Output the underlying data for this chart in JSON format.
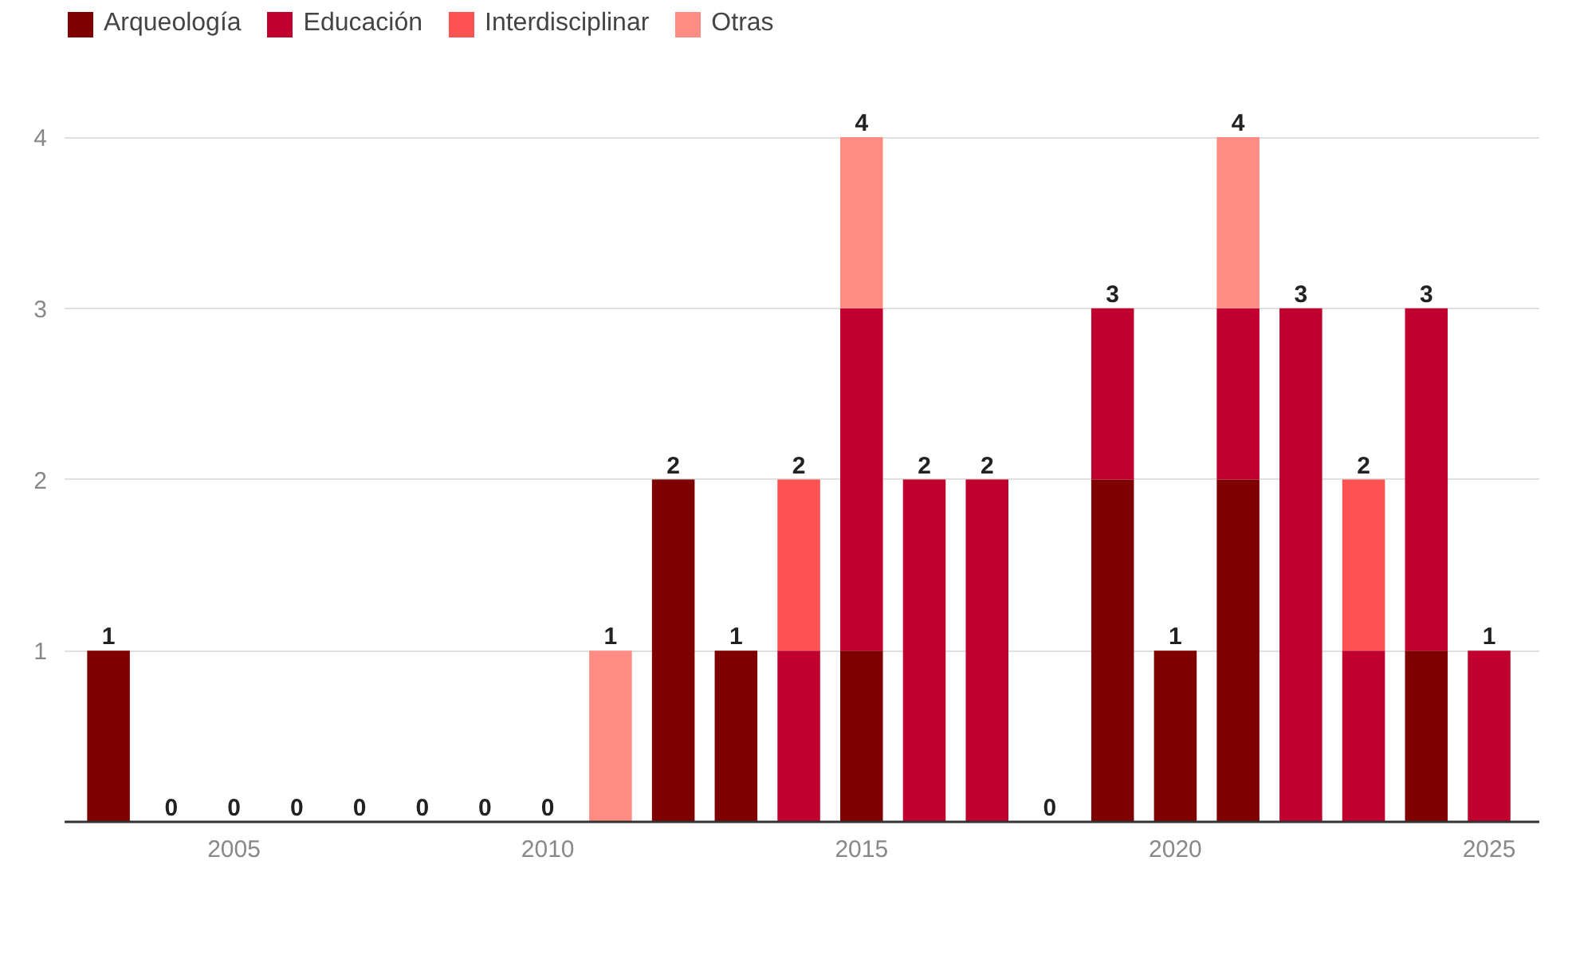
{
  "chart_data": {
    "type": "bar",
    "stacked": true,
    "x": [
      2003,
      2004,
      2005,
      2006,
      2007,
      2008,
      2009,
      2010,
      2011,
      2012,
      2013,
      2014,
      2015,
      2016,
      2017,
      2018,
      2019,
      2020,
      2021,
      2022,
      2023,
      2024,
      2025
    ],
    "series": [
      {
        "name": "Arqueología",
        "color": "#7f0000",
        "values": [
          1,
          null,
          null,
          null,
          null,
          null,
          null,
          null,
          null,
          2,
          1,
          null,
          1,
          null,
          null,
          null,
          2,
          1,
          2,
          null,
          null,
          1,
          null
        ]
      },
      {
        "name": "Educación",
        "color": "#c0002e",
        "values": [
          null,
          null,
          null,
          null,
          null,
          null,
          null,
          null,
          null,
          null,
          null,
          1,
          2,
          2,
          2,
          null,
          1,
          null,
          1,
          3,
          1,
          2,
          1
        ]
      },
      {
        "name": "Interdisciplinar",
        "color": "#ff5252",
        "values": [
          null,
          null,
          null,
          null,
          null,
          null,
          null,
          null,
          null,
          null,
          null,
          1,
          null,
          null,
          null,
          null,
          null,
          null,
          null,
          null,
          1,
          null,
          null
        ]
      },
      {
        "name": "Otras",
        "color": "#ff8c82",
        "values": [
          null,
          null,
          null,
          null,
          null,
          null,
          null,
          null,
          1,
          null,
          null,
          null,
          1,
          null,
          null,
          null,
          null,
          null,
          1,
          null,
          null,
          null,
          null
        ]
      }
    ],
    "totals": [
      "1",
      "0",
      "0",
      "0",
      "0",
      "0",
      "0",
      "0",
      "1",
      "2",
      "1",
      "2",
      "4",
      "2",
      "2",
      "0",
      "3",
      "1",
      "4",
      "3",
      "2",
      "3",
      "1"
    ],
    "xlim": [
      2002.3,
      2025.8
    ],
    "xticks": [
      2005,
      2010,
      2015,
      2020,
      2025
    ],
    "ylim": [
      0,
      4.75
    ],
    "yticks": [
      1,
      2,
      3,
      4
    ],
    "grid": "y",
    "legend": "top left"
  }
}
